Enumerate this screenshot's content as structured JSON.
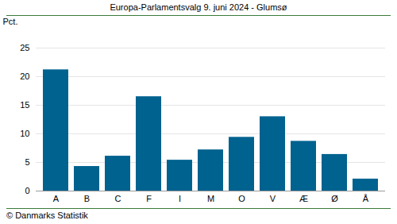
{
  "chart_data": {
    "type": "bar",
    "title": "Europa-Parlamentsvalg 9. juni 2024 - Glumsø",
    "y_label": "Pct.",
    "caption": "© Danmarks Statistik",
    "categories": [
      "A",
      "B",
      "C",
      "F",
      "I",
      "M",
      "O",
      "V",
      "Æ",
      "Ø",
      "Å"
    ],
    "values": [
      21.2,
      4.3,
      6.1,
      16.5,
      5.4,
      7.2,
      9.4,
      13.0,
      8.7,
      6.4,
      2.1
    ],
    "color": "#00628f",
    "ylim": [
      0,
      25
    ],
    "yticks": [
      0,
      5,
      10,
      15,
      20,
      25
    ],
    "grid": true
  }
}
